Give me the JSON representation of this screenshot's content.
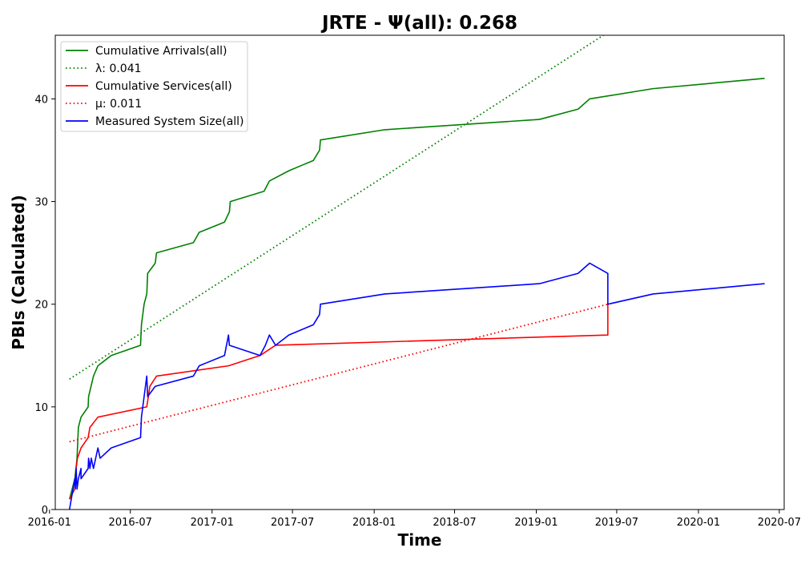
{
  "chart_data": {
    "type": "line",
    "title": "JRTE -  Ψ(all): 0.268",
    "xlabel": "Time",
    "ylabel": "PBIs (Calculated)",
    "xlim": [
      "2016-01-14",
      "2020-07-12"
    ],
    "ylim": [
      0,
      46.2
    ],
    "x_ticks": [
      "2016-01",
      "2016-07",
      "2017-01",
      "2017-07",
      "2018-01",
      "2018-07",
      "2019-01",
      "2019-07",
      "2020-01",
      "2020-07"
    ],
    "y_ticks": [
      0,
      10,
      20,
      30,
      40
    ],
    "grid": false,
    "legend_position": "upper-left",
    "series": [
      {
        "name": "Cumulative Arrivals(all)",
        "color": "#008000",
        "style": "solid",
        "points": [
          [
            "2016-02-15",
            1
          ],
          [
            "2016-02-27",
            3
          ],
          [
            "2016-03-03",
            5
          ],
          [
            "2016-03-06",
            8
          ],
          [
            "2016-03-12",
            9
          ],
          [
            "2016-03-28",
            10
          ],
          [
            "2016-03-29",
            11
          ],
          [
            "2016-04-09",
            13
          ],
          [
            "2016-04-19",
            14
          ],
          [
            "2016-05-19",
            15
          ],
          [
            "2016-07-24",
            16
          ],
          [
            "2016-07-26",
            18
          ],
          [
            "2016-08-01",
            20
          ],
          [
            "2016-08-07",
            21
          ],
          [
            "2016-08-09",
            23
          ],
          [
            "2016-08-26",
            24
          ],
          [
            "2016-08-29",
            25
          ],
          [
            "2016-11-20",
            26
          ],
          [
            "2016-12-03",
            27
          ],
          [
            "2017-01-29",
            28
          ],
          [
            "2017-02-09",
            29
          ],
          [
            "2017-02-11",
            30
          ],
          [
            "2017-04-28",
            31
          ],
          [
            "2017-05-10",
            32
          ],
          [
            "2017-06-23",
            33
          ],
          [
            "2017-08-17",
            34
          ],
          [
            "2017-08-31",
            35
          ],
          [
            "2017-09-02",
            36
          ],
          [
            "2018-01-25",
            37
          ],
          [
            "2019-01-08",
            38
          ],
          [
            "2019-04-05",
            39
          ],
          [
            "2019-05-01",
            40
          ],
          [
            "2019-09-21",
            41
          ],
          [
            "2020-05-29",
            42
          ]
        ]
      },
      {
        "name": "λ: 0.041",
        "color": "#008000",
        "style": "dotted",
        "points": [
          [
            "2016-02-15",
            12.7
          ],
          [
            "2019-06-01",
            46.2
          ]
        ]
      },
      {
        "name": "Cumulative Services(all)",
        "color": "#ff0000",
        "style": "solid",
        "points": [
          [
            "2016-02-15",
            1
          ],
          [
            "2016-02-27",
            2
          ],
          [
            "2016-03-01",
            4
          ],
          [
            "2016-03-04",
            5
          ],
          [
            "2016-03-12",
            6
          ],
          [
            "2016-03-28",
            7
          ],
          [
            "2016-04-01",
            8
          ],
          [
            "2016-04-19",
            9
          ],
          [
            "2016-08-07",
            10
          ],
          [
            "2016-08-14",
            12
          ],
          [
            "2016-08-29",
            13
          ],
          [
            "2017-02-07",
            14
          ],
          [
            "2017-04-19",
            15
          ],
          [
            "2017-05-24",
            16
          ],
          [
            "2019-06-11",
            17
          ],
          [
            "2019-06-11",
            20
          ]
        ]
      },
      {
        "name": "μ: 0.011",
        "color": "#ff0000",
        "style": "dotted",
        "points": [
          [
            "2016-02-15",
            6.6
          ],
          [
            "2019-06-11",
            20
          ]
        ]
      },
      {
        "name": "Measured System Size(all)",
        "color": "#0000ff",
        "style": "solid",
        "points": [
          [
            "2016-02-15",
            0
          ],
          [
            "2016-02-27",
            3
          ],
          [
            "2016-02-28",
            2
          ],
          [
            "2016-03-01",
            4
          ],
          [
            "2016-03-03",
            2
          ],
          [
            "2016-03-06",
            3
          ],
          [
            "2016-03-12",
            4
          ],
          [
            "2016-03-12",
            3
          ],
          [
            "2016-03-28",
            4
          ],
          [
            "2016-03-29",
            5
          ],
          [
            "2016-04-01",
            4
          ],
          [
            "2016-04-04",
            5
          ],
          [
            "2016-04-09",
            4
          ],
          [
            "2016-04-19",
            6
          ],
          [
            "2016-04-24",
            5
          ],
          [
            "2016-05-19",
            6
          ],
          [
            "2016-07-24",
            7
          ],
          [
            "2016-07-26",
            9
          ],
          [
            "2016-08-01",
            11
          ],
          [
            "2016-08-07",
            13
          ],
          [
            "2016-08-09",
            11
          ],
          [
            "2016-08-26",
            12
          ],
          [
            "2016-11-20",
            13
          ],
          [
            "2016-12-03",
            14
          ],
          [
            "2017-01-29",
            15
          ],
          [
            "2017-02-07",
            17
          ],
          [
            "2017-02-09",
            16
          ],
          [
            "2017-04-19",
            15
          ],
          [
            "2017-05-01",
            16
          ],
          [
            "2017-05-10",
            17
          ],
          [
            "2017-05-24",
            16
          ],
          [
            "2017-06-23",
            17
          ],
          [
            "2017-08-17",
            18
          ],
          [
            "2017-08-31",
            19
          ],
          [
            "2017-09-02",
            20
          ],
          [
            "2018-01-25",
            21
          ],
          [
            "2019-01-08",
            22
          ],
          [
            "2019-04-05",
            23
          ],
          [
            "2019-05-01",
            24
          ],
          [
            "2019-06-11",
            23
          ],
          [
            "2019-06-11",
            20
          ],
          [
            "2019-09-21",
            21
          ],
          [
            "2020-05-29",
            22
          ]
        ]
      }
    ]
  }
}
